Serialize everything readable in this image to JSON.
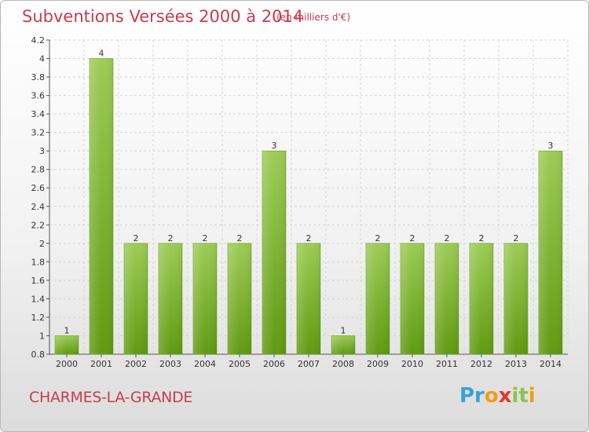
{
  "header": {
    "title": "Subventions Versées 2000 à 2014",
    "unit": "(en milliers d'€)"
  },
  "footer": {
    "town": "CHARMES-LA-GRANDE",
    "logo": [
      "Pr",
      "o",
      "",
      "x",
      "it",
      "i"
    ]
  },
  "colors": {
    "accent": "#c63c52",
    "bar_top": "#9ccc55",
    "bar_bottom": "#5f9a10",
    "grid": "#d6d6d6"
  },
  "chart_data": {
    "type": "bar",
    "title": "Subventions Versées 2000 à 2014",
    "subtitle": "(en milliers d'€)",
    "categories": [
      "2000",
      "2001",
      "2002",
      "2003",
      "2004",
      "2005",
      "2006",
      "2007",
      "2008",
      "2009",
      "2010",
      "2011",
      "2012",
      "2013",
      "2014"
    ],
    "values": [
      1,
      4,
      2,
      2,
      2,
      2,
      3,
      2,
      1,
      2,
      2,
      2,
      2,
      2,
      3
    ],
    "data_labels": [
      "1",
      "4",
      "2",
      "2",
      "2",
      "2",
      "3",
      "2",
      "1",
      "2",
      "2",
      "2",
      "2",
      "2",
      "3"
    ],
    "ylim": [
      0.8,
      4.2
    ],
    "yticks": [
      "0.8",
      "1",
      "1.2",
      "1.4",
      "1.6",
      "1.8",
      "2",
      "2.2",
      "2.4",
      "2.6",
      "2.8",
      "3",
      "3.2",
      "3.4",
      "3.6",
      "3.8",
      "4",
      "4.2"
    ],
    "ytick_values": [
      0.8,
      1,
      1.2,
      1.4,
      1.6,
      1.8,
      2,
      2.2,
      2.4,
      2.6,
      2.8,
      3,
      3.2,
      3.4,
      3.6,
      3.8,
      4,
      4.2
    ],
    "grid": true,
    "legend": "none"
  }
}
